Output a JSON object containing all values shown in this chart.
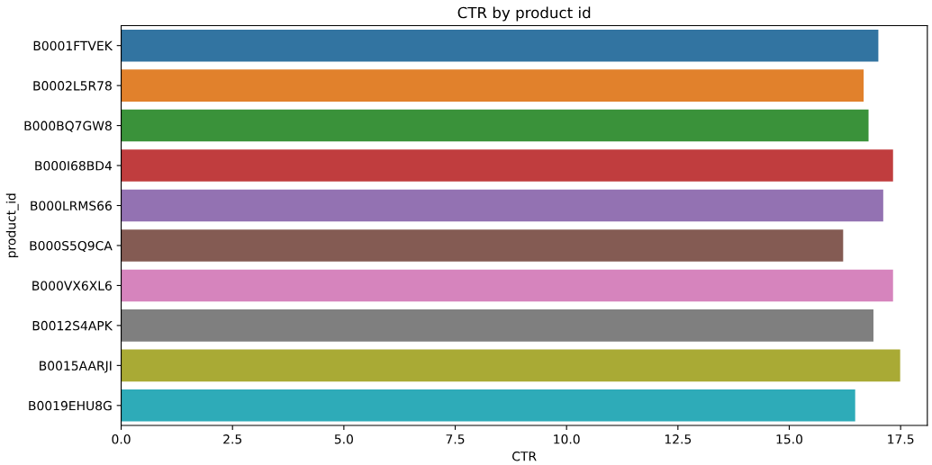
{
  "chart_data": {
    "type": "bar",
    "orientation": "horizontal",
    "title": "CTR by product id",
    "xlabel": "CTR",
    "ylabel": "product_id",
    "categories": [
      "B0001FTVEK",
      "B0002L5R78",
      "B000BQ7GW8",
      "B000I68BD4",
      "B000LRMS66",
      "B000S5Q9CA",
      "B000VX6XL6",
      "B0012S4APK",
      "B0015AARJI",
      "B0019EHU8G"
    ],
    "values": [
      17.0,
      16.67,
      16.78,
      17.33,
      17.11,
      16.21,
      17.33,
      16.89,
      17.49,
      16.48
    ],
    "colors": [
      "#3274a1",
      "#e1812c",
      "#3a923a",
      "#c03d3e",
      "#9372b2",
      "#845b53",
      "#d684bd",
      "#7f7f7f",
      "#a9aa35",
      "#2eabb8"
    ],
    "xlim": [
      0,
      18.1
    ],
    "xticks": [
      {
        "value": 0,
        "label": "0.0"
      },
      2.5,
      {
        "value": 5,
        "label": "5.0"
      },
      7.5,
      {
        "value": 10,
        "label": "10.0"
      },
      12.5,
      {
        "value": 15,
        "label": "15.0"
      },
      17.5
    ],
    "grid": false
  }
}
